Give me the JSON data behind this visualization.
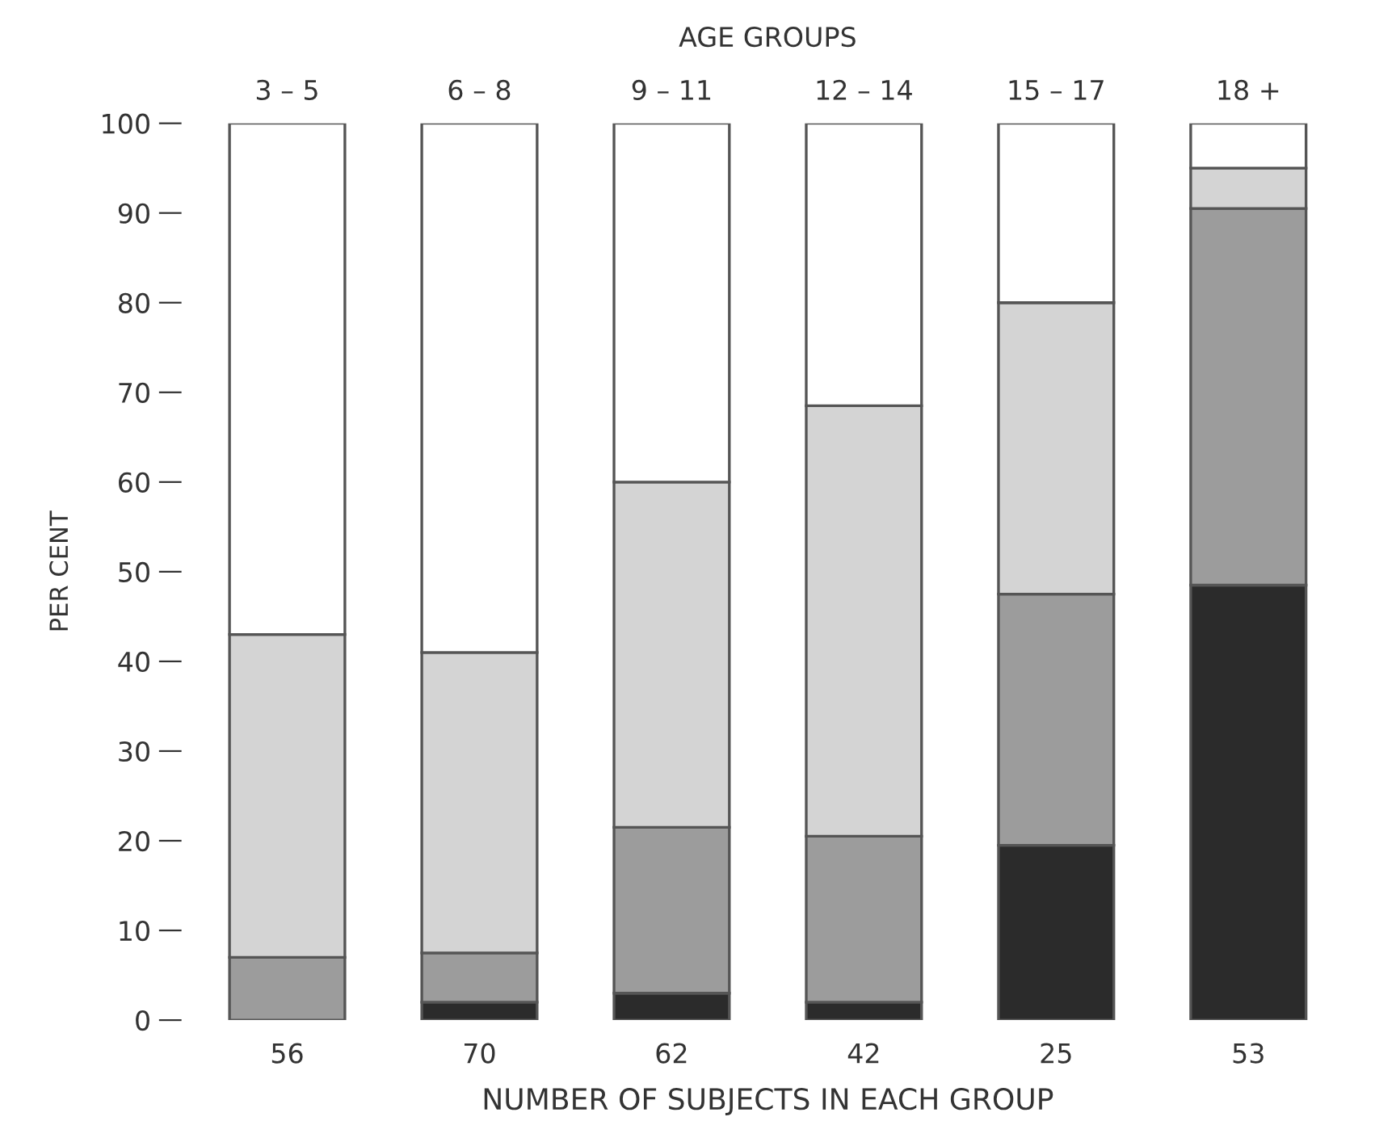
{
  "chart_data": {
    "type": "bar",
    "stacked": true,
    "title": "AGE GROUPS",
    "xlabel": "NUMBER OF SUBJECTS IN EACH GROUP",
    "ylabel": "PER CENT",
    "categories": [
      "3 – 5",
      "6 – 8",
      "9 – 11",
      "12 – 14",
      "15 – 17",
      "18 +"
    ],
    "series": [
      {
        "color": "#2b2b2b",
        "values": [
          0,
          2,
          3,
          2,
          19.5,
          48.5
        ]
      },
      {
        "color": "#9c9c9c",
        "values": [
          7,
          5.5,
          18.5,
          18.5,
          28,
          42
        ]
      },
      {
        "color": "#d4d4d4",
        "values": [
          36,
          33.5,
          38.5,
          48,
          32.5,
          4.5
        ]
      },
      {
        "color": "#ffffff",
        "values": [
          57,
          59,
          40,
          31.5,
          20,
          5
        ]
      }
    ],
    "annotations": [
      "56",
      "70",
      "62",
      "42",
      "25",
      "53"
    ],
    "ylim": [
      0,
      100
    ],
    "yticks": [
      0,
      10,
      20,
      30,
      40,
      50,
      60,
      70,
      80,
      90,
      100
    ],
    "grid": false,
    "legend": false
  }
}
